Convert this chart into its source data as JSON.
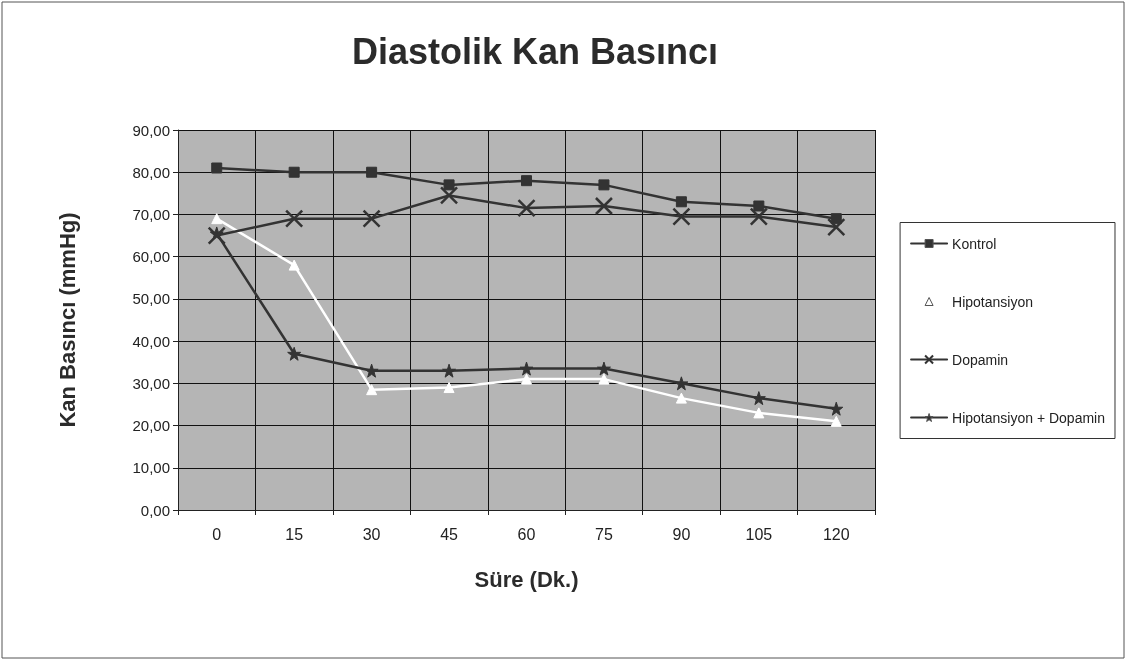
{
  "chart_data": {
    "type": "line",
    "title": "Diastolik Kan Basıncı",
    "xlabel": "Süre (Dk.)",
    "ylabel": "Kan Basıncı (mmHg)",
    "categories": [
      "0",
      "15",
      "30",
      "45",
      "60",
      "75",
      "90",
      "105",
      "120"
    ],
    "ylim": [
      0,
      90
    ],
    "yticks": [
      {
        "value": 0,
        "label": "0,00"
      },
      {
        "value": 10,
        "label": "10,00"
      },
      {
        "value": 20,
        "label": "20,00"
      },
      {
        "value": 30,
        "label": "30,00"
      },
      {
        "value": 40,
        "label": "40,00"
      },
      {
        "value": 50,
        "label": "50,00"
      },
      {
        "value": 60,
        "label": "60,00"
      },
      {
        "value": 70,
        "label": "70,00"
      },
      {
        "value": 80,
        "label": "80,00"
      },
      {
        "value": 90,
        "label": "90,00"
      }
    ],
    "grid": true,
    "legend": "right",
    "series": [
      {
        "name": "Kontrol",
        "color": "#333333",
        "marker": "square",
        "values": [
          81,
          80,
          80,
          77,
          78,
          77,
          73,
          72,
          69
        ]
      },
      {
        "name": "Hipotansiyon",
        "color": "#ffffff",
        "marker": "triangle",
        "values": [
          69,
          58,
          28.5,
          29,
          31,
          31,
          26.5,
          23,
          21
        ]
      },
      {
        "name": "Dopamin",
        "color": "#333333",
        "marker": "cross",
        "values": [
          65,
          69,
          69,
          74.5,
          71.5,
          72,
          69.5,
          69.5,
          67
        ]
      },
      {
        "name": "Hipotansiyon + Dopamin",
        "color": "#333333",
        "marker": "star",
        "values": [
          65.5,
          37,
          33,
          33,
          33.5,
          33.5,
          30,
          26.5,
          24
        ]
      }
    ]
  }
}
